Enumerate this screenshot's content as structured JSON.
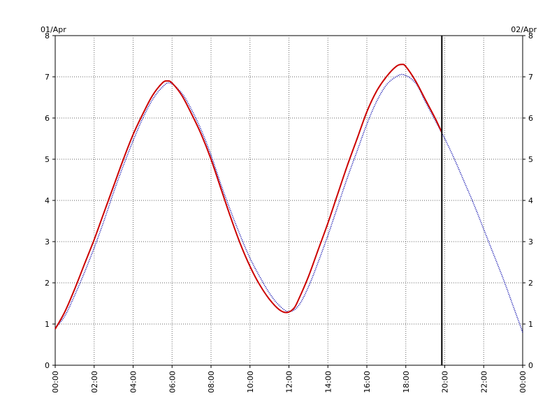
{
  "chart_data": {
    "type": "line",
    "title": "",
    "xlabel": "",
    "ylabel": "",
    "date_labels": {
      "left": "01/Apr",
      "right": "02/Apr"
    },
    "x_ticks": [
      "00:00",
      "02:00",
      "04:00",
      "06:00",
      "08:00",
      "10:00",
      "12:00",
      "14:00",
      "16:00",
      "18:00",
      "20:00",
      "22:00",
      "00:00"
    ],
    "y_ticks": [
      "0",
      "1",
      "2",
      "3",
      "4",
      "5",
      "6",
      "7",
      "8"
    ],
    "xlim_hours": [
      0,
      24
    ],
    "ylim": [
      0,
      8
    ],
    "grid": true,
    "current_time_hours": 19.85,
    "series": [
      {
        "name": "",
        "color": "#cc0000",
        "style": "solid",
        "x": [
          0,
          0.5,
          1,
          1.5,
          2,
          2.5,
          3,
          3.5,
          4,
          4.5,
          5,
          5.5,
          5.75,
          6,
          6.5,
          7,
          7.5,
          8,
          8.5,
          9,
          9.5,
          10,
          10.5,
          11,
          11.5,
          11.9,
          12.25,
          12.5,
          13,
          13.5,
          14,
          14.5,
          15,
          15.5,
          16,
          16.5,
          17,
          17.5,
          17.8,
          18,
          18.5,
          19,
          19.5,
          19.85
        ],
        "y": [
          0.88,
          1.3,
          1.85,
          2.45,
          3.05,
          3.7,
          4.35,
          5.0,
          5.6,
          6.1,
          6.55,
          6.85,
          6.9,
          6.85,
          6.55,
          6.1,
          5.6,
          5.0,
          4.3,
          3.6,
          2.95,
          2.4,
          1.95,
          1.6,
          1.35,
          1.28,
          1.38,
          1.6,
          2.15,
          2.8,
          3.45,
          4.15,
          4.85,
          5.5,
          6.15,
          6.65,
          7.0,
          7.25,
          7.3,
          7.25,
          6.9,
          6.45,
          6.0,
          5.65
        ]
      },
      {
        "name": "",
        "color": "#0000aa",
        "style": "dotted",
        "x": [
          0,
          0.5,
          1,
          1.5,
          2,
          2.5,
          3,
          3.5,
          4,
          4.5,
          5,
          5.5,
          5.9,
          6.5,
          7,
          7.5,
          8,
          8.5,
          9,
          9.5,
          10,
          10.5,
          11,
          11.5,
          12,
          12.5,
          13,
          13.5,
          14,
          14.5,
          15,
          15.5,
          16,
          16.5,
          17,
          17.5,
          17.9,
          18.5,
          19,
          19.5,
          20,
          20.5,
          21,
          21.5,
          22,
          22.5,
          23,
          23.5,
          24
        ],
        "y": [
          0.9,
          1.2,
          1.7,
          2.25,
          2.85,
          3.5,
          4.2,
          4.85,
          5.45,
          6.0,
          6.45,
          6.75,
          6.85,
          6.6,
          6.2,
          5.7,
          5.1,
          4.4,
          3.75,
          3.15,
          2.6,
          2.15,
          1.75,
          1.45,
          1.3,
          1.45,
          1.9,
          2.5,
          3.15,
          3.85,
          4.55,
          5.2,
          5.85,
          6.4,
          6.8,
          7.0,
          7.05,
          6.85,
          6.4,
          5.95,
          5.5,
          5.0,
          4.45,
          3.9,
          3.3,
          2.7,
          2.1,
          1.45,
          0.8
        ]
      }
    ]
  }
}
